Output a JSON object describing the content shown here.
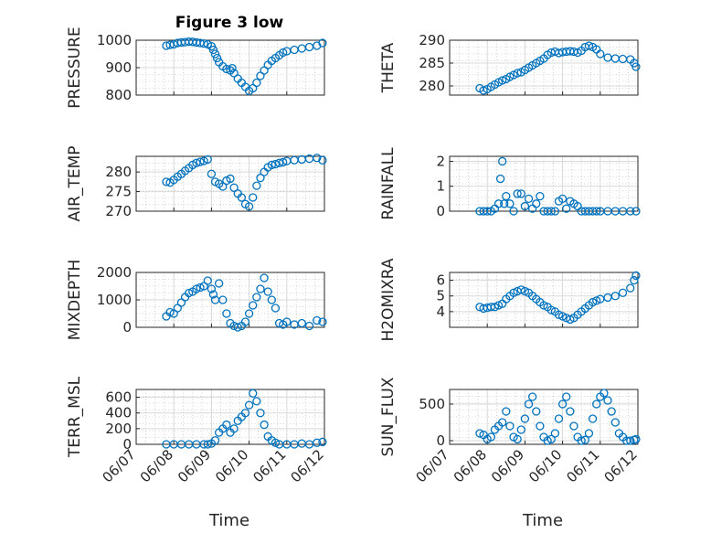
{
  "figure_title": "Figure 3 low",
  "x_axis_label": "Time",
  "marker_color": "#0072BD",
  "x_ticks": [
    "06/07",
    "06/08",
    "06/09",
    "06/10",
    "06/11",
    "06/12"
  ],
  "chart_data": [
    {
      "type": "scatter",
      "title": "Figure 3 low",
      "ylabel": "PRESSURE",
      "xlabel": "",
      "ylim": [
        800,
        1000
      ],
      "yticks": [
        "800",
        "900",
        "1000"
      ],
      "grid": true,
      "x_unit": "days since 06/07",
      "xlim": [
        0,
        5
      ],
      "x": [
        0.8,
        0.9,
        1.0,
        1.1,
        1.2,
        1.3,
        1.4,
        1.5,
        1.6,
        1.7,
        1.8,
        1.9,
        2.0,
        2.05,
        2.1,
        2.15,
        2.2,
        2.3,
        2.4,
        2.5,
        2.55,
        2.6,
        2.7,
        2.8,
        2.9,
        3.0,
        3.1,
        3.2,
        3.3,
        3.4,
        3.5,
        3.6,
        3.7,
        3.8,
        3.9,
        4.0,
        4.2,
        4.4,
        4.6,
        4.8,
        4.95
      ],
      "y": [
        980,
        983,
        985,
        990,
        992,
        993,
        995,
        994,
        992,
        990,
        988,
        985,
        978,
        965,
        950,
        935,
        920,
        905,
        895,
        890,
        898,
        880,
        860,
        845,
        830,
        815,
        825,
        845,
        870,
        890,
        910,
        925,
        935,
        945,
        955,
        960,
        965,
        970,
        975,
        980,
        990
      ]
    },
    {
      "type": "scatter",
      "ylabel": "THETA",
      "xlabel": "",
      "ylim": [
        278,
        290
      ],
      "yticks": [
        "280",
        "285",
        "290"
      ],
      "grid": true,
      "x_unit": "days since 06/07",
      "xlim": [
        0,
        5
      ],
      "x": [
        0.8,
        0.9,
        1.0,
        1.1,
        1.2,
        1.3,
        1.4,
        1.5,
        1.6,
        1.7,
        1.8,
        1.9,
        2.0,
        2.1,
        2.2,
        2.3,
        2.4,
        2.5,
        2.6,
        2.7,
        2.8,
        2.9,
        3.0,
        3.1,
        3.2,
        3.3,
        3.4,
        3.5,
        3.6,
        3.7,
        3.8,
        3.9,
        4.0,
        4.2,
        4.4,
        4.6,
        4.8,
        4.9,
        4.95
      ],
      "y": [
        279.5,
        279.0,
        279.3,
        279.8,
        280.3,
        280.8,
        281.2,
        281.5,
        282.0,
        282.4,
        282.8,
        283.0,
        283.5,
        284.0,
        284.5,
        285.0,
        285.5,
        286.0,
        286.8,
        287.3,
        287.5,
        287.2,
        287.4,
        287.5,
        287.6,
        287.5,
        287.3,
        287.7,
        288.5,
        288.8,
        288.5,
        288.0,
        287.0,
        286.2,
        286.0,
        285.9,
        285.8,
        285.0,
        284.2
      ]
    },
    {
      "type": "scatter",
      "ylabel": "AIR_TEMP",
      "xlabel": "",
      "ylim": [
        270,
        284
      ],
      "yticks": [
        "270",
        "275",
        "280"
      ],
      "grid": true,
      "x_unit": "days since 06/07",
      "xlim": [
        0,
        5
      ],
      "x": [
        0.8,
        0.9,
        1.0,
        1.1,
        1.2,
        1.3,
        1.4,
        1.5,
        1.6,
        1.7,
        1.8,
        1.9,
        2.0,
        2.1,
        2.2,
        2.3,
        2.4,
        2.5,
        2.6,
        2.7,
        2.8,
        2.9,
        3.0,
        3.1,
        3.2,
        3.3,
        3.4,
        3.5,
        3.6,
        3.7,
        3.8,
        3.9,
        4.0,
        4.2,
        4.4,
        4.6,
        4.8,
        4.95
      ],
      "y": [
        277.5,
        277.3,
        278.0,
        278.8,
        279.5,
        280.3,
        281.0,
        281.8,
        282.3,
        282.6,
        282.8,
        283.2,
        279.5,
        277.5,
        277.0,
        276.3,
        277.8,
        278.3,
        276.0,
        274.5,
        273.5,
        271.8,
        271.2,
        273.5,
        276.5,
        278.5,
        280.0,
        281.2,
        281.8,
        282.0,
        282.3,
        282.5,
        282.8,
        283.0,
        283.2,
        283.4,
        283.6,
        283.0
      ]
    },
    {
      "type": "scatter",
      "ylabel": "RAINFALL",
      "xlabel": "",
      "ylim": [
        0,
        2.2
      ],
      "yticks": [
        "0",
        "1",
        "2"
      ],
      "grid": true,
      "x_unit": "days since 06/07",
      "xlim": [
        0,
        5
      ],
      "x": [
        0.8,
        0.9,
        1.0,
        1.1,
        1.2,
        1.3,
        1.35,
        1.4,
        1.45,
        1.5,
        1.6,
        1.7,
        1.8,
        1.9,
        2.0,
        2.1,
        2.2,
        2.3,
        2.4,
        2.5,
        2.6,
        2.7,
        2.8,
        2.9,
        3.0,
        3.1,
        3.2,
        3.3,
        3.4,
        3.5,
        3.6,
        3.7,
        3.8,
        3.9,
        4.0,
        4.2,
        4.4,
        4.6,
        4.8,
        4.95
      ],
      "y": [
        0,
        0,
        0,
        0,
        0.1,
        0.3,
        1.3,
        2.0,
        0.3,
        0.6,
        0.3,
        0,
        0.7,
        0.7,
        0.2,
        0.5,
        0.1,
        0.3,
        0.6,
        0,
        0,
        0,
        0,
        0.4,
        0.5,
        0.1,
        0.4,
        0.3,
        0.2,
        0,
        0,
        0,
        0,
        0,
        0,
        0,
        0,
        0,
        0,
        0
      ]
    },
    {
      "type": "scatter",
      "ylabel": "MIXDEPTH",
      "xlabel": "",
      "ylim": [
        0,
        2000
      ],
      "yticks": [
        "0",
        "1000",
        "2000"
      ],
      "grid": true,
      "x_unit": "days since 06/07",
      "xlim": [
        0,
        5
      ],
      "x": [
        0.8,
        0.9,
        1.0,
        1.1,
        1.2,
        1.3,
        1.4,
        1.5,
        1.6,
        1.7,
        1.8,
        1.9,
        2.0,
        2.05,
        2.1,
        2.2,
        2.3,
        2.4,
        2.5,
        2.6,
        2.7,
        2.8,
        2.9,
        3.0,
        3.1,
        3.2,
        3.3,
        3.4,
        3.5,
        3.6,
        3.7,
        3.8,
        3.9,
        4.0,
        4.2,
        4.4,
        4.6,
        4.8,
        4.95
      ],
      "y": [
        400,
        550,
        500,
        700,
        900,
        1100,
        1250,
        1300,
        1400,
        1450,
        1500,
        1700,
        1400,
        1200,
        1000,
        1600,
        1000,
        500,
        150,
        50,
        0,
        50,
        200,
        500,
        800,
        1100,
        1400,
        1800,
        1300,
        1000,
        700,
        150,
        100,
        200,
        100,
        150,
        50,
        250,
        200
      ]
    },
    {
      "type": "scatter",
      "ylabel": "H2OMIXRA",
      "xlabel": "",
      "ylim": [
        3,
        6.5
      ],
      "yticks": [
        "4",
        "5",
        "6"
      ],
      "grid": true,
      "x_unit": "days since 06/07",
      "xlim": [
        0,
        5
      ],
      "x": [
        0.8,
        0.9,
        1.0,
        1.1,
        1.2,
        1.3,
        1.4,
        1.5,
        1.6,
        1.7,
        1.8,
        1.9,
        2.0,
        2.1,
        2.2,
        2.3,
        2.4,
        2.5,
        2.6,
        2.7,
        2.8,
        2.9,
        3.0,
        3.1,
        3.2,
        3.3,
        3.4,
        3.5,
        3.6,
        3.7,
        3.8,
        3.9,
        4.0,
        4.2,
        4.4,
        4.6,
        4.8,
        4.9,
        4.95
      ],
      "y": [
        4.3,
        4.2,
        4.25,
        4.3,
        4.3,
        4.4,
        4.5,
        4.8,
        5.0,
        5.2,
        5.3,
        5.4,
        5.3,
        5.2,
        5.0,
        4.8,
        4.6,
        4.4,
        4.3,
        4.1,
        4.0,
        3.8,
        3.7,
        3.6,
        3.5,
        3.6,
        3.8,
        4.0,
        4.2,
        4.4,
        4.6,
        4.7,
        4.8,
        4.9,
        5.0,
        5.2,
        5.5,
        6.0,
        6.3
      ]
    },
    {
      "type": "scatter",
      "ylabel": "TERR_MSL",
      "xlabel": "Time",
      "ylim": [
        0,
        700
      ],
      "yticks": [
        "0",
        "200",
        "400",
        "600"
      ],
      "grid": true,
      "x_unit": "days since 06/07",
      "xticks": [
        "06/07",
        "06/08",
        "06/09",
        "06/10",
        "06/11",
        "06/12"
      ],
      "xlim": [
        0,
        5
      ],
      "x": [
        0.8,
        1.0,
        1.2,
        1.4,
        1.6,
        1.8,
        1.9,
        2.0,
        2.1,
        2.2,
        2.3,
        2.4,
        2.5,
        2.6,
        2.7,
        2.8,
        2.9,
        3.0,
        3.1,
        3.2,
        3.3,
        3.4,
        3.5,
        3.6,
        3.7,
        3.8,
        4.0,
        4.2,
        4.4,
        4.6,
        4.8,
        4.95
      ],
      "y": [
        0,
        0,
        0,
        0,
        0,
        0,
        0,
        10,
        50,
        150,
        200,
        250,
        150,
        200,
        300,
        350,
        400,
        500,
        650,
        550,
        400,
        250,
        100,
        50,
        20,
        0,
        0,
        0,
        10,
        0,
        20,
        30
      ]
    },
    {
      "type": "scatter",
      "ylabel": "SUN_FLUX",
      "xlabel": "Time",
      "ylim": [
        -50,
        700
      ],
      "yticks": [
        "0",
        "500"
      ],
      "grid": true,
      "x_unit": "days since 06/07",
      "xticks": [
        "06/07",
        "06/08",
        "06/09",
        "06/10",
        "06/11",
        "06/12"
      ],
      "xlim": [
        0,
        5
      ],
      "x": [
        0.8,
        0.9,
        1.0,
        1.1,
        1.2,
        1.3,
        1.4,
        1.5,
        1.6,
        1.7,
        1.8,
        1.9,
        2.0,
        2.1,
        2.2,
        2.3,
        2.4,
        2.5,
        2.6,
        2.7,
        2.8,
        2.9,
        3.0,
        3.1,
        3.2,
        3.3,
        3.4,
        3.5,
        3.6,
        3.7,
        3.8,
        3.9,
        4.0,
        4.1,
        4.2,
        4.3,
        4.4,
        4.5,
        4.6,
        4.7,
        4.8,
        4.9,
        4.95
      ],
      "y": [
        100,
        80,
        20,
        50,
        150,
        200,
        250,
        400,
        200,
        50,
        20,
        150,
        300,
        500,
        600,
        400,
        200,
        50,
        0,
        20,
        100,
        300,
        500,
        600,
        400,
        200,
        50,
        0,
        10,
        100,
        300,
        500,
        600,
        650,
        550,
        400,
        250,
        100,
        50,
        0,
        0,
        10,
        20
      ]
    }
  ]
}
